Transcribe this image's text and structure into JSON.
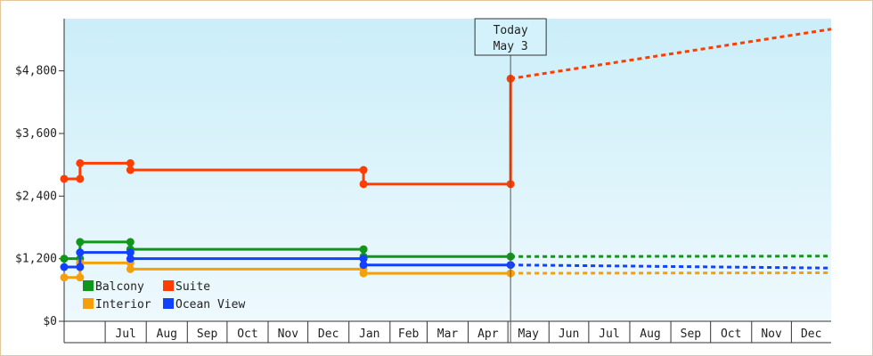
{
  "chart_data": {
    "type": "line",
    "title": "",
    "xlabel": "",
    "ylabel": "",
    "ylim": [
      0,
      5800
    ],
    "y_ticks": [
      {
        "value": 0,
        "label": "$0"
      },
      {
        "value": 1200,
        "label": "$1,200"
      },
      {
        "value": 2400,
        "label": "$2,400"
      },
      {
        "value": 3600,
        "label": "$3,600"
      },
      {
        "value": 4800,
        "label": "$4,800"
      }
    ],
    "x_range": [
      "2025-05-31",
      "2026-12-31"
    ],
    "months": [
      {
        "label": "Jul",
        "start": "2025-07-01",
        "end": "2025-08-01"
      },
      {
        "label": "Aug",
        "start": "2025-08-01",
        "end": "2025-09-01"
      },
      {
        "label": "Sep",
        "start": "2025-09-01",
        "end": "2025-10-01"
      },
      {
        "label": "Oct",
        "start": "2025-10-01",
        "end": "2025-11-01"
      },
      {
        "label": "Nov",
        "start": "2025-11-01",
        "end": "2025-12-01"
      },
      {
        "label": "Dec",
        "start": "2025-12-01",
        "end": "2026-01-01"
      },
      {
        "label": "Jan",
        "start": "2026-01-01",
        "end": "2026-02-01"
      },
      {
        "label": "Feb",
        "start": "2026-02-01",
        "end": "2026-03-01"
      },
      {
        "label": "Mar",
        "start": "2026-03-01",
        "end": "2026-04-01"
      },
      {
        "label": "Apr",
        "start": "2026-04-01",
        "end": "2026-05-01"
      },
      {
        "label": "May",
        "start": "2026-05-01",
        "end": "2026-06-01"
      },
      {
        "label": "Jun",
        "start": "2026-06-01",
        "end": "2026-07-01"
      },
      {
        "label": "Jul",
        "start": "2026-07-01",
        "end": "2026-08-01"
      },
      {
        "label": "Aug",
        "start": "2026-08-01",
        "end": "2026-09-01"
      },
      {
        "label": "Sep",
        "start": "2026-09-01",
        "end": "2026-10-01"
      },
      {
        "label": "Oct",
        "start": "2026-10-01",
        "end": "2026-11-01"
      },
      {
        "label": "Nov",
        "start": "2026-11-01",
        "end": "2026-12-01"
      },
      {
        "label": "Dec",
        "start": "2026-12-01",
        "end": "2027-01-01"
      }
    ],
    "today": {
      "date": "2026-05-03",
      "line1": "Today",
      "line2": "May 3"
    },
    "series": [
      {
        "name": "Balcony",
        "color": "#109618",
        "points": [
          [
            "2025-05-31",
            1200
          ],
          [
            "2025-06-12",
            1200
          ],
          [
            "2025-06-12",
            1520
          ],
          [
            "2025-07-20",
            1520
          ],
          [
            "2025-07-20",
            1380
          ],
          [
            "2026-01-12",
            1380
          ],
          [
            "2026-01-12",
            1240
          ],
          [
            "2026-05-03",
            1240
          ]
        ],
        "projection": [
          [
            "2026-05-03",
            1240
          ],
          [
            "2026-12-31",
            1250
          ]
        ]
      },
      {
        "name": "Suite",
        "color": "#ff3d00",
        "points": [
          [
            "2025-05-31",
            2730
          ],
          [
            "2025-06-12",
            2730
          ],
          [
            "2025-06-12",
            3030
          ],
          [
            "2025-07-20",
            3030
          ],
          [
            "2025-07-20",
            2900
          ],
          [
            "2026-01-12",
            2900
          ],
          [
            "2026-01-12",
            2630
          ],
          [
            "2026-05-03",
            2630
          ],
          [
            "2026-05-03",
            4650
          ]
        ],
        "projection": [
          [
            "2026-05-03",
            4650
          ],
          [
            "2026-12-31",
            5600
          ]
        ]
      },
      {
        "name": "Interior",
        "color": "#f5a00a",
        "points": [
          [
            "2025-05-31",
            840
          ],
          [
            "2025-06-12",
            840
          ],
          [
            "2025-06-12",
            1120
          ],
          [
            "2025-07-20",
            1120
          ],
          [
            "2025-07-20",
            1000
          ],
          [
            "2026-01-12",
            1000
          ],
          [
            "2026-01-12",
            920
          ],
          [
            "2026-05-03",
            920
          ]
        ],
        "projection": [
          [
            "2026-05-03",
            920
          ],
          [
            "2026-12-31",
            930
          ]
        ]
      },
      {
        "name": "Ocean View",
        "color": "#1240ff",
        "points": [
          [
            "2025-05-31",
            1040
          ],
          [
            "2025-06-12",
            1040
          ],
          [
            "2025-06-12",
            1320
          ],
          [
            "2025-07-20",
            1320
          ],
          [
            "2025-07-20",
            1200
          ],
          [
            "2026-01-12",
            1200
          ],
          [
            "2026-01-12",
            1080
          ],
          [
            "2026-05-03",
            1080
          ]
        ],
        "projection": [
          [
            "2026-05-03",
            1080
          ],
          [
            "2026-12-31",
            1020
          ]
        ]
      }
    ],
    "legend": {
      "placement": "bottom-left"
    },
    "background_gradient": [
      "#cbeef9",
      "#eef9fd"
    ]
  }
}
